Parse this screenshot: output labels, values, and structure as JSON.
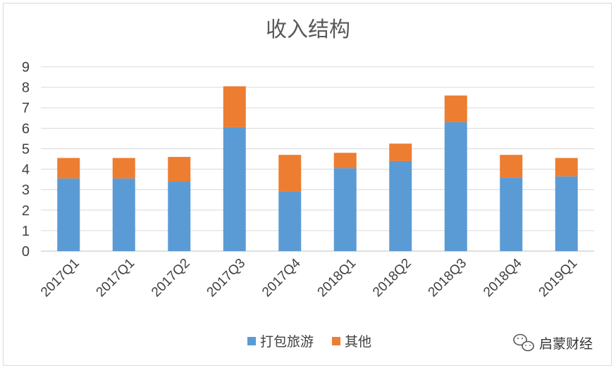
{
  "chart_data": {
    "type": "bar",
    "stacked": true,
    "title": "收入结构",
    "categories": [
      "2017Q1",
      "2017Q1",
      "2017Q2",
      "2017Q3",
      "2017Q4",
      "2018Q1",
      "2018Q2",
      "2018Q3",
      "2018Q4",
      "2019Q1"
    ],
    "series": [
      {
        "name": "打包旅游",
        "color": "#5b9bd5",
        "values": [
          3.55,
          3.55,
          3.4,
          6.05,
          2.9,
          4.05,
          4.4,
          6.3,
          3.6,
          3.65
        ]
      },
      {
        "name": "其他",
        "color": "#ed7d31",
        "values": [
          1.0,
          1.0,
          1.2,
          2.0,
          1.8,
          0.75,
          0.85,
          1.3,
          1.1,
          0.9
        ]
      }
    ],
    "ylim": [
      0,
      9
    ],
    "yticks": [
      0,
      1,
      2,
      3,
      4,
      5,
      6,
      7,
      8,
      9
    ],
    "grid": true,
    "legend": "bottom"
  },
  "watermark": {
    "icon": "wechat-icon",
    "text": "启蒙财经"
  }
}
